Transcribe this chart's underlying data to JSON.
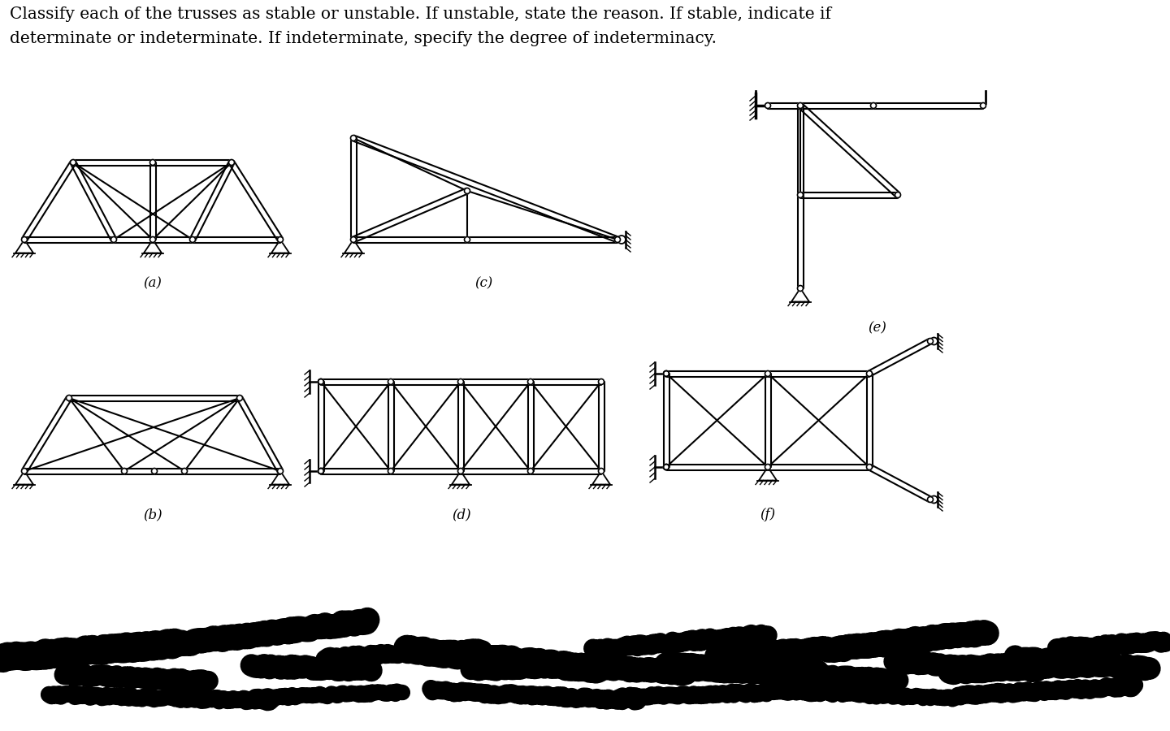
{
  "title_line1": "Classify each of the trusses as stable or unstable. If unstable, state the reason. If stable, indicate if",
  "title_line2": "determinate or indeterminate. If indeterminate, specify the degree of indeterminacy.",
  "background_color": "#ffffff",
  "line_color": "#000000",
  "fig_width": 14.4,
  "fig_height": 9.0,
  "labels": [
    "(a)",
    "(b)",
    "(c)",
    "(d)",
    "(e)",
    "(f)"
  ]
}
